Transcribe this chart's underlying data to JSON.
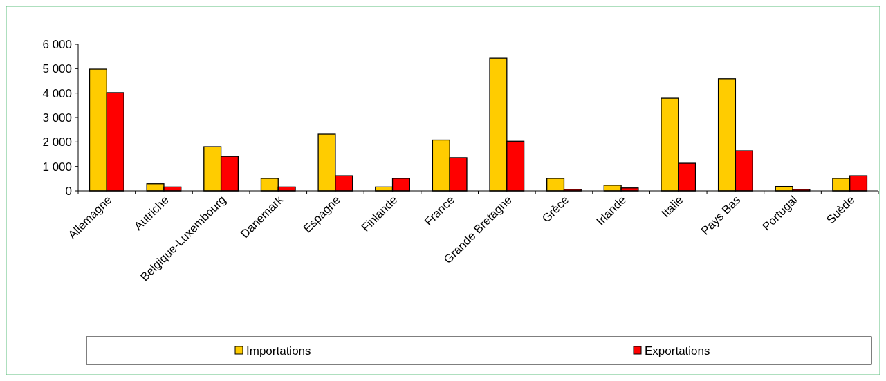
{
  "chart_data": {
    "type": "bar",
    "categories": [
      "Allemagne",
      "Autriche",
      "Belgique-Luxembourg",
      "Danemark",
      "Espagne",
      "Finlande",
      "France",
      "Grande Bretagne",
      "Grèce",
      "Irlande",
      "Italie",
      "Pays Bas",
      "Portugal",
      "Suède"
    ],
    "series": [
      {
        "name": "Importations",
        "color": "#ffcc00",
        "values": [
          4980,
          290,
          1810,
          510,
          2320,
          160,
          2080,
          5430,
          510,
          230,
          3790,
          4590,
          180,
          510
        ]
      },
      {
        "name": "Exportations",
        "color": "#ff0000",
        "values": [
          4020,
          160,
          1410,
          160,
          620,
          510,
          1360,
          2030,
          60,
          120,
          1130,
          1640,
          60,
          620
        ]
      }
    ],
    "ylim": [
      0,
      6000
    ],
    "yticks": [
      {
        "value": 0,
        "label": "0"
      },
      {
        "value": 1000,
        "label": "1 000"
      },
      {
        "value": 2000,
        "label": "2 000"
      },
      {
        "value": 3000,
        "label": "3 000"
      },
      {
        "value": 4000,
        "label": "4 000"
      },
      {
        "value": 5000,
        "label": "5 000"
      },
      {
        "value": 6000,
        "label": "6 000"
      }
    ],
    "grid": false,
    "legend": "bottom"
  }
}
